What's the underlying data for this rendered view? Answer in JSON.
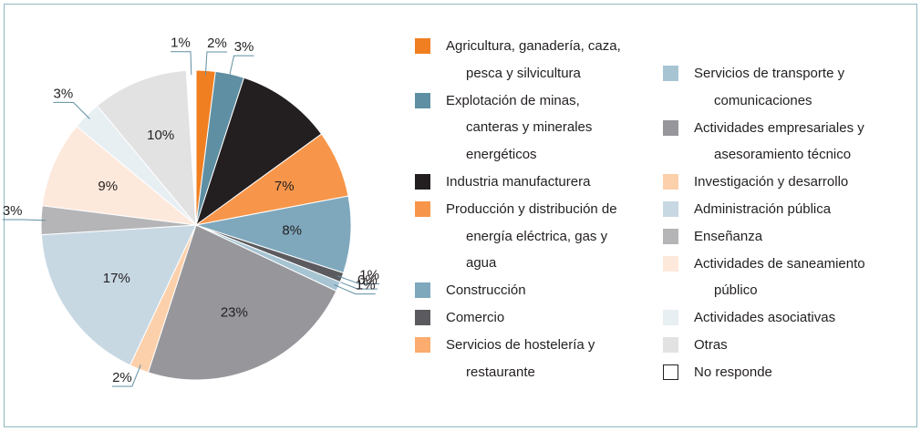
{
  "chart_data": {
    "type": "pie",
    "categories": [
      "Agricultura, ganadería, caza, pesca y silvicultura",
      "Explotación de minas, canteras y minerales energéticos",
      "Industria manufacturera",
      "Producción y distribución de energía eléctrica, gas y agua",
      "Construcción",
      "Comercio",
      "Servicios de hostelería y restaurante",
      "Servicios de transporte y comunicaciones",
      "Actividades empresariales y asesoramiento técnico",
      "Investigación y desarrollo",
      "Administración pública",
      "Enseñanza",
      "Actividades de saneamiento público",
      "Actividades asociativas",
      "Otras",
      "No responde"
    ],
    "values": [
      2,
      3,
      10,
      7,
      8,
      1,
      0,
      1,
      23,
      2,
      17,
      3,
      9,
      3,
      10,
      1
    ],
    "value_labels": [
      "2%",
      "3%",
      "10%",
      "7%",
      "8%",
      "1%",
      "0%",
      "1%",
      "23%",
      "2%",
      "17%",
      "3%",
      "9%",
      "3%",
      "10%",
      "1%"
    ],
    "colors": [
      "#f07f22",
      "#5f8fa3",
      "#231f20",
      "#f7964a",
      "#7fa8bd",
      "#5b5b5f",
      "#fbac6e",
      "#a7c4d3",
      "#96969b",
      "#fcd0aa",
      "#c7d8e3",
      "#b5b5b8",
      "#fde9dc",
      "#e8eff3",
      "#e2e2e3",
      "#ffffff"
    ]
  }
}
